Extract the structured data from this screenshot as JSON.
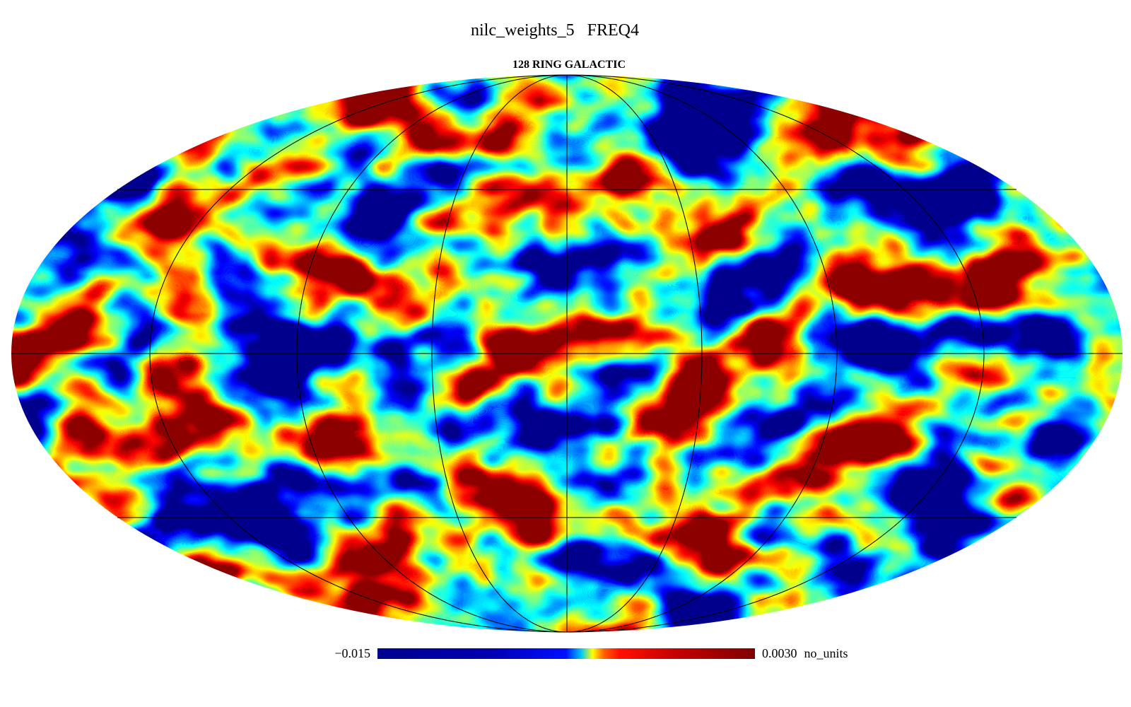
{
  "header": {
    "title": "nilc_weights_5   FREQ4",
    "subtitle": "128 RING GALACTIC"
  },
  "colorbar": {
    "min": {
      "value": -0.015,
      "label": "−0.015"
    },
    "max": {
      "value": 0.003,
      "label": "0.0030"
    },
    "unit": "no_units"
  }
}
